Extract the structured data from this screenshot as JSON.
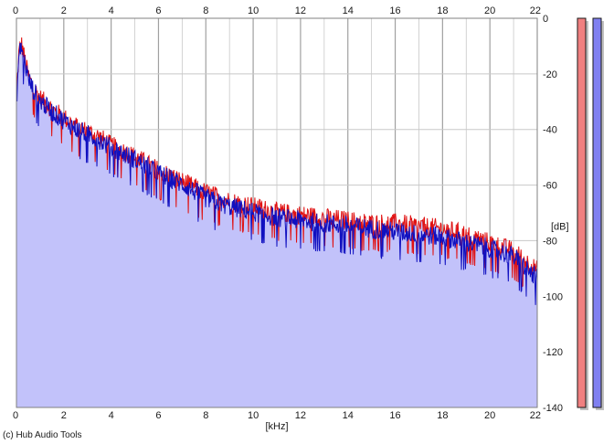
{
  "colors": {
    "fill": "#c2c2fa",
    "channel_left": "#e01010",
    "channel_right": "#1010c0",
    "grid_major": "#a0a0a0",
    "grid_minor": "#c8c8c8",
    "meter_left": "#f08080",
    "meter_right": "#8080f0"
  },
  "copyright": "(c) Hub Audio Tools",
  "chart_data": {
    "type": "line",
    "xlabel": "[kHz]",
    "ylabel": "[dB]",
    "xlim": [
      0,
      22
    ],
    "ylim": [
      -140,
      0
    ],
    "x_ticks": [
      "0",
      "2",
      "4",
      "6",
      "8",
      "10",
      "12",
      "14",
      "16",
      "18",
      "20",
      "22"
    ],
    "y_ticks": [
      "0",
      "-20",
      "-40",
      "-60",
      "-80",
      "-100",
      "-120",
      "-140"
    ],
    "grid": true,
    "legend": "none",
    "series": [
      {
        "channel": "left",
        "color": "#e01010",
        "x": [
          0,
          0.1,
          0.2,
          0.3,
          0.4,
          0.5,
          0.7,
          1,
          1.5,
          2,
          2.5,
          3,
          3.5,
          4,
          5,
          6,
          7,
          8,
          9,
          10,
          11,
          12,
          13,
          14,
          15,
          16,
          17,
          18,
          19,
          20,
          21,
          22
        ],
        "values": [
          -28,
          -12,
          -8,
          -12,
          -16,
          -20,
          -24,
          -28,
          -32,
          -35,
          -38,
          -40,
          -42,
          -45,
          -49,
          -54,
          -58,
          -62,
          -65,
          -67,
          -69,
          -70,
          -71,
          -72,
          -73,
          -73,
          -74,
          -75,
          -77,
          -80,
          -83,
          -90
        ]
      },
      {
        "channel": "right",
        "color": "#1010c0",
        "x": [
          0,
          0.1,
          0.2,
          0.3,
          0.4,
          0.5,
          0.7,
          1,
          1.5,
          2,
          2.5,
          3,
          3.5,
          4,
          5,
          6,
          7,
          8,
          9,
          10,
          11,
          12,
          13,
          14,
          15,
          16,
          17,
          18,
          19,
          20,
          21,
          22
        ],
        "values": [
          -30,
          -13,
          -9,
          -13,
          -17,
          -21,
          -25,
          -29,
          -33,
          -36,
          -39,
          -41,
          -43,
          -46,
          -50,
          -55,
          -59,
          -64,
          -67,
          -69,
          -71,
          -72,
          -73,
          -74,
          -75,
          -76,
          -77,
          -78,
          -80,
          -82,
          -85,
          -93
        ]
      }
    ],
    "level_meters": [
      {
        "channel": "left",
        "color": "#f08080"
      },
      {
        "channel": "right",
        "color": "#8080f0"
      }
    ]
  }
}
